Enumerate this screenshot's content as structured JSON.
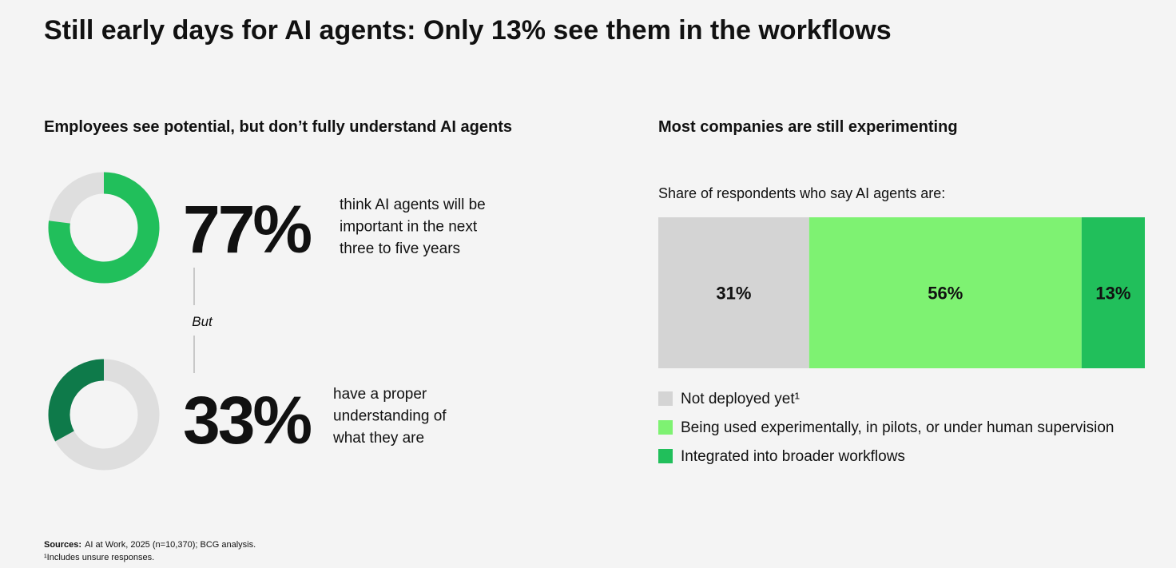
{
  "title": "Still early days for AI agents: Only 13% see them in the workflows",
  "left_heading": "Employees see potential, but don’t fully understand AI agents",
  "connector": "But",
  "chart_data": [
    {
      "type": "donut",
      "values": [
        77
      ],
      "value_labels": [
        "77%"
      ],
      "color": "#21bf5b",
      "rest_color": "#dedede",
      "direction": "clockwise",
      "caption": [
        "think AI agents will be",
        "important in the next",
        "three to five years"
      ]
    },
    {
      "type": "donut",
      "values": [
        33
      ],
      "value_labels": [
        "33%"
      ],
      "color": "#0e7a4a",
      "rest_color": "#dedede",
      "direction": "counterclockwise",
      "caption": [
        "have a proper",
        "understanding of",
        "what they are"
      ]
    },
    {
      "type": "stacked_bar",
      "title": "Most companies are still experimenting",
      "subtitle": "Share of respondents who say AI agents are:",
      "series": [
        {
          "name": "Not deployed yet¹",
          "color": "#d4d4d4",
          "label_color": "#000000",
          "values": [
            31
          ],
          "value_labels": [
            "31%"
          ]
        },
        {
          "name": "Being used experimentally, in pilots, or under human supervision",
          "color": "#7ef272",
          "label_color": "#000000",
          "values": [
            56
          ],
          "value_labels": [
            "56%"
          ]
        },
        {
          "name": "Integrated into broader workflows",
          "color": "#21bf5b",
          "label_color": "#ffffff",
          "values": [
            13
          ],
          "value_labels": [
            "13%"
          ]
        }
      ]
    }
  ],
  "footer": {
    "sources_label": "Sources:",
    "sources": "AI at Work, 2025 (n=10,370); BCG analysis.",
    "note": "¹Includes unsure responses."
  }
}
